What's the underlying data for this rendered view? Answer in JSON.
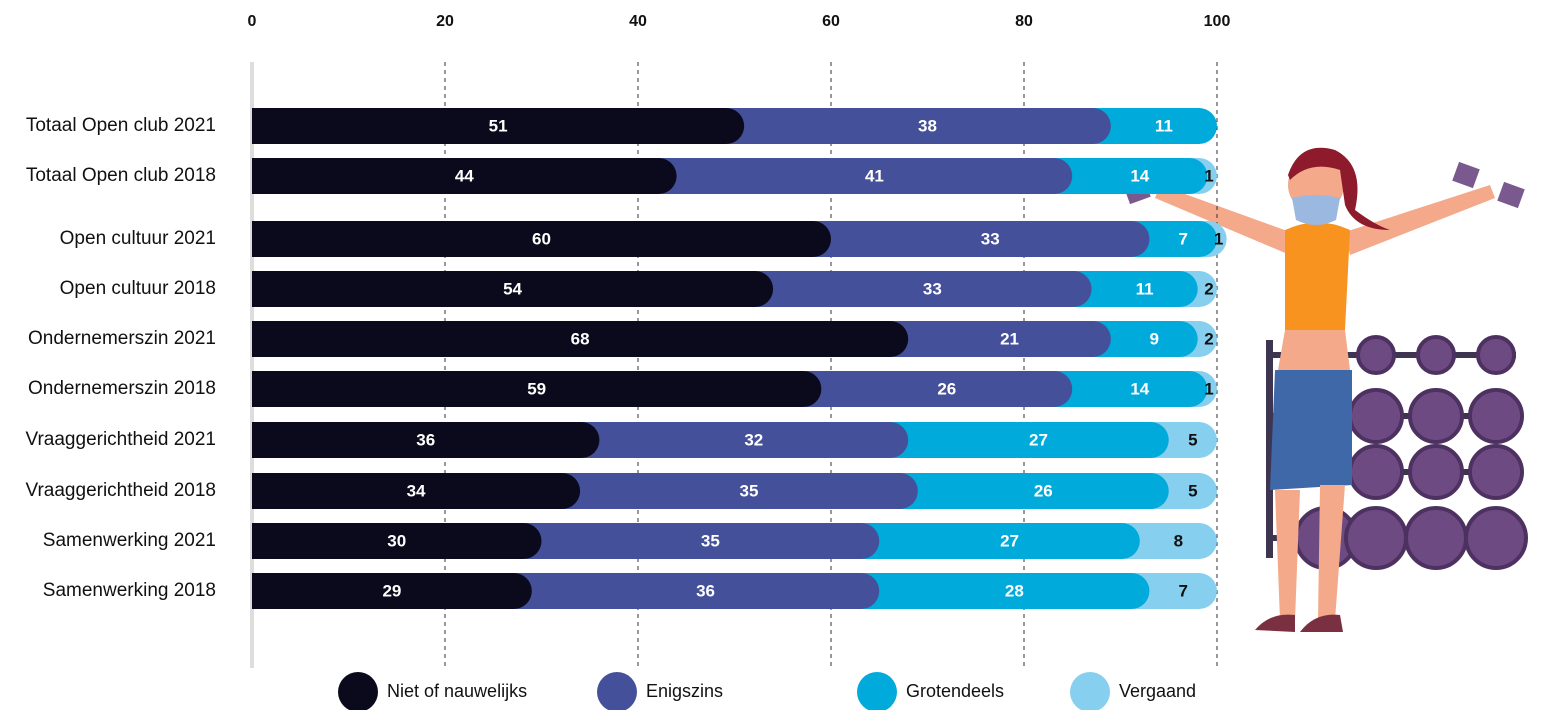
{
  "chart_data": {
    "type": "stacked-bar",
    "categories": [
      "Totaal Open club 2021",
      "Totaal Open club 2018",
      "Open cultuur 2021",
      "Open cultuur 2018",
      "Ondernemerszin 2021",
      "Ondernemerszin 2018",
      "Vraaggerichtheid 2021",
      "Vraaggerichtheid 2018",
      "Samenwerking 2021",
      "Samenwerking 2018"
    ],
    "series": [
      {
        "name": "Niet of nauwelijks",
        "color": "#0b0a1c",
        "values": [
          51,
          44,
          60,
          54,
          68,
          59,
          36,
          34,
          30,
          29
        ]
      },
      {
        "name": "Enigszins",
        "color": "#45509a",
        "values": [
          38,
          41,
          33,
          33,
          21,
          26,
          32,
          35,
          35,
          36
        ]
      },
      {
        "name": "Grotendeels",
        "color": "#00aadb",
        "values": [
          11,
          14,
          7,
          11,
          9,
          14,
          27,
          26,
          27,
          28
        ]
      },
      {
        "name": "Vergaand",
        "color": "#87cfef",
        "values": [
          null,
          1,
          1,
          2,
          2,
          1,
          5,
          5,
          8,
          7
        ]
      }
    ],
    "xlim": [
      0,
      100
    ],
    "xticks": [
      0,
      20,
      40,
      60,
      80,
      100
    ],
    "grid": true
  }
}
